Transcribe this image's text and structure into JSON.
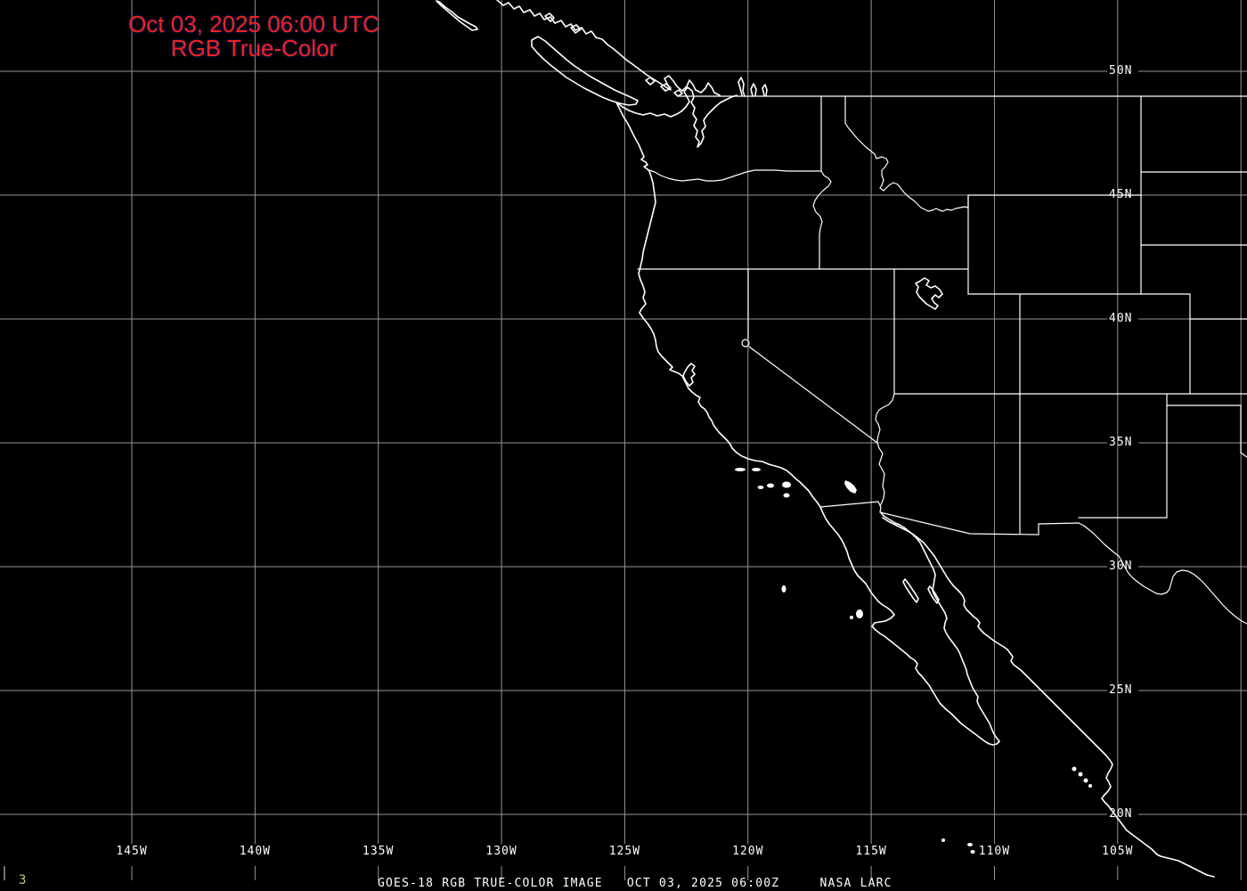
{
  "header": {
    "title_line1": "Oct 03, 2025 06:00 UTC",
    "title_line2": "RGB True-Color"
  },
  "footer": {
    "caption": "GOES-18 RGB TRUE-COLOR IMAGE   OCT 03, 2025 06:00Z     NASA LARC",
    "frame_number": "3"
  },
  "graticule": {
    "lat_labels": [
      {
        "text": "50N",
        "lat": 50
      },
      {
        "text": "45N",
        "lat": 45
      },
      {
        "text": "40N",
        "lat": 40
      },
      {
        "text": "35N",
        "lat": 35
      },
      {
        "text": "30N",
        "lat": 30
      },
      {
        "text": "25N",
        "lat": 25
      },
      {
        "text": "20N",
        "lat": 20
      }
    ],
    "lon_labels": [
      {
        "text": "145W",
        "lon": 145
      },
      {
        "text": "140W",
        "lon": 140
      },
      {
        "text": "135W",
        "lon": 135
      },
      {
        "text": "130W",
        "lon": 130
      },
      {
        "text": "125W",
        "lon": 125
      },
      {
        "text": "120W",
        "lon": 120
      },
      {
        "text": "115W",
        "lon": 115
      },
      {
        "text": "110W",
        "lon": 110
      },
      {
        "text": "105W",
        "lon": 105
      }
    ],
    "unlabeled_lon_lines": [
      100
    ]
  },
  "colors": {
    "background": "#000000",
    "grid": "#969696",
    "map_outline": "#ffffff",
    "title": "#ee2222",
    "frame_number": "#c8c87a",
    "labels": "#ffffff"
  }
}
